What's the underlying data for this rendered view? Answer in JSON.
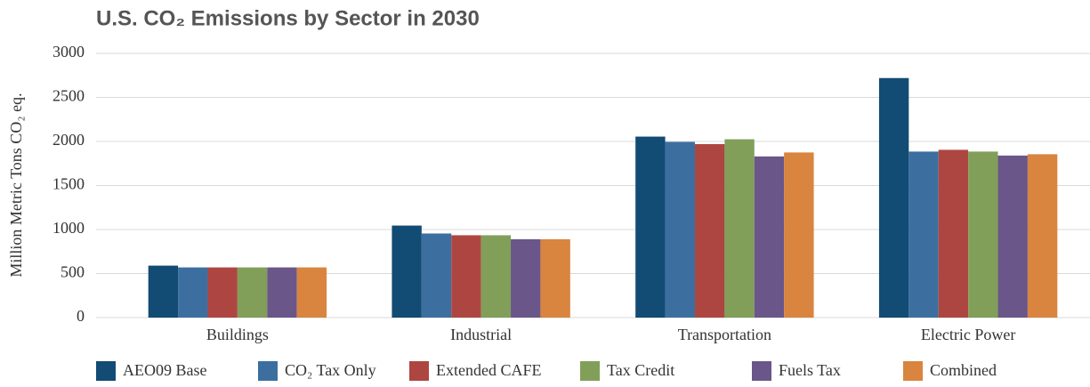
{
  "chart_data": {
    "type": "bar",
    "title": "U.S. CO₂ Emissions by Sector in 2030",
    "y_label": "Million Metric Tons CO₂ eq.",
    "categories": [
      "Buildings",
      "Industrial",
      "Transportation",
      "Electric Power"
    ],
    "series": [
      {
        "name": "AEO09 Base",
        "color": "#124b73",
        "values": [
          590,
          1045,
          2055,
          2720
        ]
      },
      {
        "name": "CO₂ Tax Only",
        "color": "#3c6fa0",
        "values": [
          570,
          955,
          1995,
          1885
        ]
      },
      {
        "name": "Extended CAFE",
        "color": "#ad4641",
        "values": [
          570,
          935,
          1970,
          1905
        ]
      },
      {
        "name": "Tax Credit",
        "color": "#819f59",
        "values": [
          570,
          935,
          2025,
          1885
        ]
      },
      {
        "name": "Fuels Tax",
        "color": "#6a5689",
        "values": [
          570,
          890,
          1830,
          1840
        ]
      },
      {
        "name": "Combined",
        "color": "#d9843f",
        "values": [
          570,
          890,
          1875,
          1855
        ]
      }
    ],
    "ylim": [
      0,
      3000
    ],
    "yticks": [
      0,
      500,
      1000,
      1500,
      2000,
      2500,
      3000
    ],
    "grid": true
  }
}
